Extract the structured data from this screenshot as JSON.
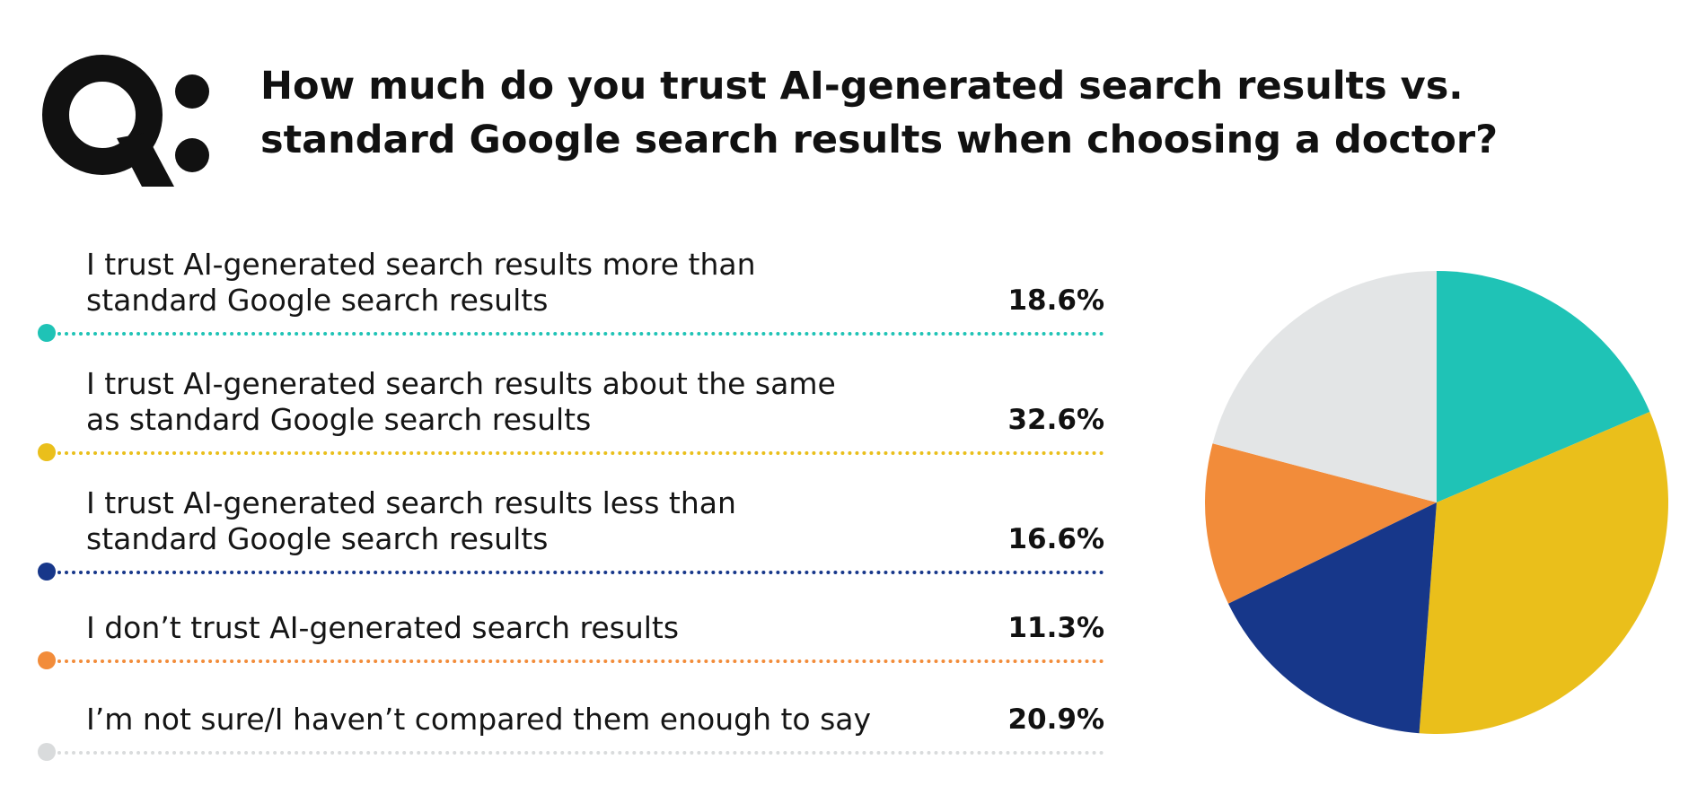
{
  "header": {
    "q_mark": "Q:",
    "title_lines": [
      "How much do you trust AI-generated search results vs.",
      "standard Google search results when choosing a doctor?"
    ]
  },
  "colors": {
    "teal": "#1fc3b6",
    "yellow": "#eabf1b",
    "navy": "#17378a",
    "orange": "#f28c3a",
    "light_gray": "#e3e5e6"
  },
  "chart_data": {
    "type": "pie",
    "title": "How much do you trust AI-generated search results vs. standard Google search results when choosing a doctor?",
    "unit": "%",
    "slices": [
      {
        "label": "I trust AI-generated search results more than standard Google search results",
        "label_lines": [
          "I trust AI-generated search results more than",
          "standard Google search results"
        ],
        "value": 18.6,
        "display": "18.6%",
        "color": "#1fc3b6"
      },
      {
        "label": "I trust AI-generated search results about the same as standard Google search results",
        "label_lines": [
          "I trust AI-generated search results about the same",
          "as standard Google search results"
        ],
        "value": 32.6,
        "display": "32.6%",
        "color": "#eabf1b"
      },
      {
        "label": "I trust AI-generated search results less than standard Google search results",
        "label_lines": [
          "I trust AI-generated search results less than",
          "standard Google search results"
        ],
        "value": 16.6,
        "display": "16.6%",
        "color": "#17378a"
      },
      {
        "label": "I don’t trust AI-generated search results",
        "label_lines": [
          "I don’t trust AI-generated search results"
        ],
        "value": 11.3,
        "display": "11.3%",
        "color": "#f28c3a"
      },
      {
        "label": "I’m not sure/I haven’t compared them enough to say",
        "label_lines": [
          "I’m not sure/I haven’t compared them enough to say"
        ],
        "value": 20.9,
        "display": "20.9%",
        "color": "#e3e5e6"
      }
    ],
    "start_angle": "12 o'clock",
    "direction": "clockwise",
    "legend": "left"
  }
}
